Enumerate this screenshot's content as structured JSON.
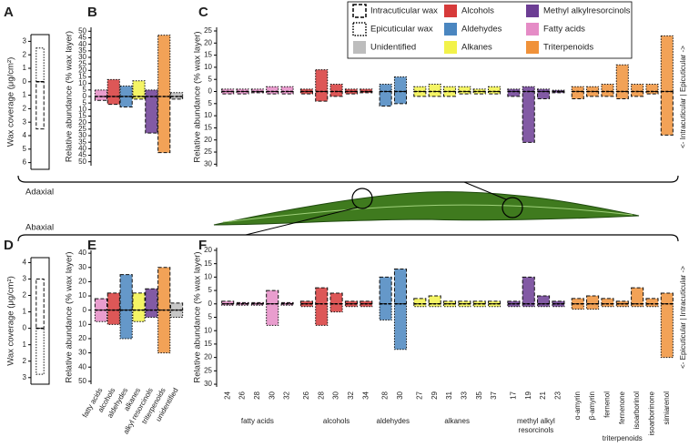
{
  "figure": {
    "top_label": "Adaxial",
    "bottom_label": "Abaxial"
  },
  "chart_data": [
    {
      "type": "diverging_bar",
      "panel": "A",
      "ylabel": "Wax coverage (μg/cm²)",
      "ylim": [
        -6.5,
        3.5
      ],
      "yticks": [
        3,
        2,
        1,
        0,
        {
          "value": -1,
          "label": "1"
        },
        {
          "value": -2,
          "label": "2"
        },
        {
          "value": -3,
          "label": "3"
        },
        {
          "value": -4,
          "label": "4"
        },
        {
          "value": -5,
          "label": "5"
        },
        {
          "value": -6,
          "label": "6"
        }
      ],
      "upper_border": "dotted",
      "lower_border": "dashed",
      "groups": [
        {
          "color": "#ffffff",
          "upper": [
            2.5
          ],
          "lower": [
            -3.5
          ]
        }
      ]
    },
    {
      "type": "diverging_bar",
      "panel": "B",
      "ylabel": "Relative abundance (% wax layer)",
      "ylim": [
        -53,
        53
      ],
      "yticks": [
        50,
        45,
        40,
        35,
        30,
        25,
        20,
        15,
        10,
        5,
        0,
        {
          "value": -5,
          "label": "5"
        },
        {
          "value": -10,
          "label": "10"
        },
        {
          "value": -15,
          "label": "15"
        },
        {
          "value": -20,
          "label": "20"
        },
        {
          "value": -25,
          "label": "25"
        },
        {
          "value": -30,
          "label": "30"
        },
        {
          "value": -35,
          "label": "35"
        },
        {
          "value": -40,
          "label": "40"
        },
        {
          "value": -45,
          "label": "45"
        },
        {
          "value": -50,
          "label": "50"
        }
      ],
      "upper_border": "dotted",
      "lower_border": "dashed",
      "groups": [
        {
          "colors": [
            "#e58cc6",
            "#d73a3a",
            "#4a86c0",
            "#f2f24a",
            "#6c3d94",
            "#f0923a",
            "#bdbdbd"
          ],
          "upper": [
            5,
            13,
            8,
            12,
            5,
            47,
            3
          ],
          "lower": [
            -3,
            -6,
            -8,
            -2,
            -28,
            -43,
            -2
          ]
        }
      ]
    },
    {
      "type": "diverging_bar",
      "panel": "C",
      "ylabel": "Relative abundance (% wax layer)",
      "ylim": [
        -31,
        26.5
      ],
      "yticks": [
        25,
        20,
        15,
        10,
        5,
        0,
        {
          "value": -5,
          "label": "5"
        },
        {
          "value": -10,
          "label": "10"
        },
        {
          "value": -15,
          "label": "15"
        },
        {
          "value": -20,
          "label": "20"
        },
        {
          "value": -25,
          "label": "25"
        },
        {
          "value": -30,
          "label": "30"
        }
      ],
      "upper_border": "dotted",
      "lower_border": "dashed",
      "side_label": "<- Intracuticular | Epicuticular ->",
      "legend": [
        {
          "name": "Intracuticular wax",
          "style": "dashed"
        },
        {
          "name": "Epicuticular wax",
          "style": "dotted"
        },
        {
          "name": "Unidentified",
          "color": "#bdbdbd"
        },
        {
          "name": "Alcohols",
          "color": "#d73a3a"
        },
        {
          "name": "Aldehydes",
          "color": "#4a86c0"
        },
        {
          "name": "Alkanes",
          "color": "#f2f24a"
        },
        {
          "name": "Methyl alkylresorcinols",
          "color": "#6c3d94"
        },
        {
          "name": "Fatty acids",
          "color": "#e58cc6"
        },
        {
          "name": "Triterpenoids",
          "color": "#f0923a"
        }
      ],
      "groups": [
        {
          "color": "#e58cc6",
          "upper": [
            1,
            1,
            1,
            2,
            2
          ],
          "lower": [
            -1,
            -1,
            -0.5,
            -1,
            -1
          ]
        },
        {
          "color": "#d73a3a",
          "upper": [
            1,
            9,
            3,
            1,
            1
          ],
          "lower": [
            -1,
            -4,
            -2,
            -1,
            -0.5
          ]
        },
        {
          "color": "#4a86c0",
          "upper": [
            3,
            6
          ],
          "lower": [
            -6,
            -5
          ]
        },
        {
          "color": "#f2f24a",
          "upper": [
            2,
            3,
            2,
            2,
            1,
            2
          ],
          "lower": [
            -2,
            -2,
            -2,
            -1,
            -1,
            -1
          ]
        },
        {
          "color": "#6c3d94",
          "upper": [
            1,
            2,
            1,
            0.5
          ],
          "lower": [
            -2,
            -21,
            -3,
            -0.5
          ]
        },
        {
          "color": "#f0923a",
          "upper": [
            2,
            2,
            3,
            11,
            3,
            3,
            23
          ],
          "lower": [
            -3,
            -2,
            -2,
            -3,
            -2,
            -1,
            -18
          ]
        }
      ]
    },
    {
      "type": "diverging_bar",
      "panel": "D",
      "ylabel": "Wax coverage (μg/cm²)",
      "ylim": [
        -3.4,
        4.3
      ],
      "yticks": [
        4,
        3,
        2,
        1,
        0,
        {
          "value": -1,
          "label": "1"
        },
        {
          "value": -2,
          "label": "2"
        },
        {
          "value": -3,
          "label": "3"
        }
      ],
      "upper_border": "dashed",
      "lower_border": "dotted",
      "groups": [
        {
          "color": "#ffffff",
          "upper": [
            3
          ],
          "lower": [
            -2.8
          ]
        }
      ]
    },
    {
      "type": "diverging_bar",
      "panel": "E",
      "ylabel": "Relative abundance (% wax layer)",
      "ylim": [
        -52,
        42
      ],
      "yticks": [
        40,
        30,
        20,
        10,
        0,
        {
          "value": -10,
          "label": "10"
        },
        {
          "value": -20,
          "label": "20"
        },
        {
          "value": -30,
          "label": "30"
        },
        {
          "value": -40,
          "label": "40"
        },
        {
          "value": -50,
          "label": "50"
        }
      ],
      "upper_border": "dashed",
      "lower_border": "dotted",
      "xtick_rotation": -60,
      "groups": [
        {
          "colors": [
            "#e58cc6",
            "#d73a3a",
            "#4a86c0",
            "#f2f24a",
            "#6c3d94",
            "#f0923a",
            "#bdbdbd"
          ],
          "categories": [
            "fatty acids",
            "alcohols",
            "aldehydes",
            "alkanes",
            "alkyl resorcinols",
            "triterpenoids",
            "unidentified"
          ],
          "upper": [
            8,
            12,
            25,
            12,
            15,
            30,
            5
          ],
          "lower": [
            -8,
            -10,
            -20,
            -8,
            -5,
            -30,
            -5
          ]
        }
      ]
    },
    {
      "type": "diverging_bar",
      "panel": "F",
      "ylabel": "Relative abundance (% wax layer)",
      "ylim": [
        -31,
        21
      ],
      "yticks": [
        20,
        15,
        10,
        5,
        0,
        {
          "value": -5,
          "label": "5"
        },
        {
          "value": -10,
          "label": "10"
        },
        {
          "value": -15,
          "label": "15"
        },
        {
          "value": -20,
          "label": "20"
        },
        {
          "value": -25,
          "label": "25"
        },
        {
          "value": -30,
          "label": "30"
        }
      ],
      "upper_border": "dashed",
      "lower_border": "dotted",
      "xtick_rotation": -90,
      "side_label": "<- Epicuticular | Intracuticular ->",
      "groups": [
        {
          "name": "fatty acids",
          "color": "#e58cc6",
          "categories": [
            "24",
            "26",
            "28",
            "30",
            "32"
          ],
          "upper": [
            1,
            0.5,
            0.5,
            5,
            0.5
          ],
          "lower": [
            -0.5,
            -0.5,
            -0.5,
            -8,
            -0.5
          ]
        },
        {
          "name": "alcohols",
          "color": "#d73a3a",
          "categories": [
            "26",
            "28",
            "30",
            "32",
            "34"
          ],
          "upper": [
            1,
            6,
            4,
            1,
            1
          ],
          "lower": [
            -1,
            -8,
            -3,
            -1,
            -1
          ]
        },
        {
          "name": "aldehydes",
          "color": "#4a86c0",
          "categories": [
            "28",
            "30"
          ],
          "upper": [
            10,
            13
          ],
          "lower": [
            -6,
            -17
          ]
        },
        {
          "name": "alkanes",
          "color": "#f2f24a",
          "categories": [
            "27",
            "29",
            "31",
            "33",
            "35",
            "37"
          ],
          "upper": [
            2,
            3,
            1,
            1,
            1,
            1
          ],
          "lower": [
            -1,
            -1,
            -1,
            -1,
            -1,
            -1
          ]
        },
        {
          "name": "methyl alkyl resorcinols",
          "color": "#6c3d94",
          "categories": [
            "17",
            "19",
            "21",
            "23"
          ],
          "upper": [
            1,
            10,
            3,
            1
          ],
          "lower": [
            -1,
            -1,
            -1,
            -1
          ]
        },
        {
          "name": "triterpenoids",
          "color": "#f0923a",
          "categories": [
            "α-amyrin",
            "β-amyrin",
            "fernenol",
            "fernenone",
            "isoarborinol",
            "isoarborinone",
            "simiarenol"
          ],
          "upper": [
            2,
            3,
            2,
            1,
            6,
            2,
            4
          ],
          "lower": [
            -2,
            -2,
            -1,
            -1,
            -1,
            -1,
            -20
          ]
        }
      ]
    }
  ]
}
